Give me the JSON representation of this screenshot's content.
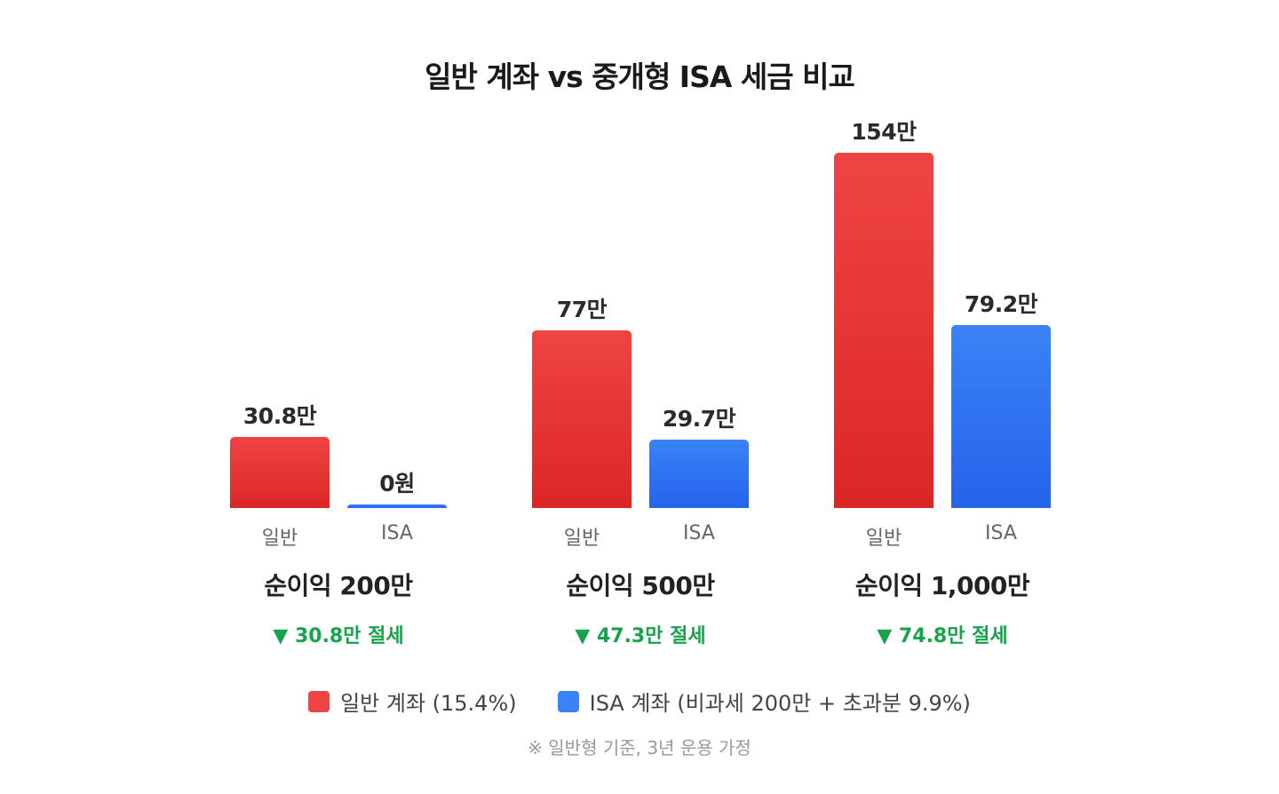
{
  "chart_data": {
    "type": "bar",
    "title": "일반 계좌 vs 중개형 ISA 세금 비교",
    "unit": "만원",
    "colors": {
      "일반": "#ef4444",
      "ISA": "#3b82f6",
      "savings": "#16a34a"
    },
    "groups": [
      {
        "title": "순이익 200만",
        "savings_label": "▼ 30.8만 절세",
        "bars": [
          {
            "category": "일반",
            "value": 30.8,
            "label": "30.8만"
          },
          {
            "category": "ISA",
            "value": 0,
            "label": "0원"
          }
        ]
      },
      {
        "title": "순이익 500만",
        "savings_label": "▼ 47.3만 절세",
        "bars": [
          {
            "category": "일반",
            "value": 77,
            "label": "77만"
          },
          {
            "category": "ISA",
            "value": 29.7,
            "label": "29.7만"
          }
        ]
      },
      {
        "title": "순이익 1,000만",
        "savings_label": "▼ 74.8만 절세",
        "bars": [
          {
            "category": "일반",
            "value": 154,
            "label": "154만"
          },
          {
            "category": "ISA",
            "value": 79.2,
            "label": "79.2만"
          }
        ]
      }
    ],
    "ylim": [
      0,
      154
    ],
    "grid": false,
    "legend": {
      "position": "bottom",
      "items": [
        {
          "name": "일반 계좌 (15.4%)",
          "color": "#ef4444"
        },
        {
          "name": "ISA 계좌 (비과세 200만 + 초과분 9.9%)",
          "color": "#3b82f6"
        }
      ]
    },
    "note": "※ 일반형 기준, 3년 운용 가정"
  }
}
